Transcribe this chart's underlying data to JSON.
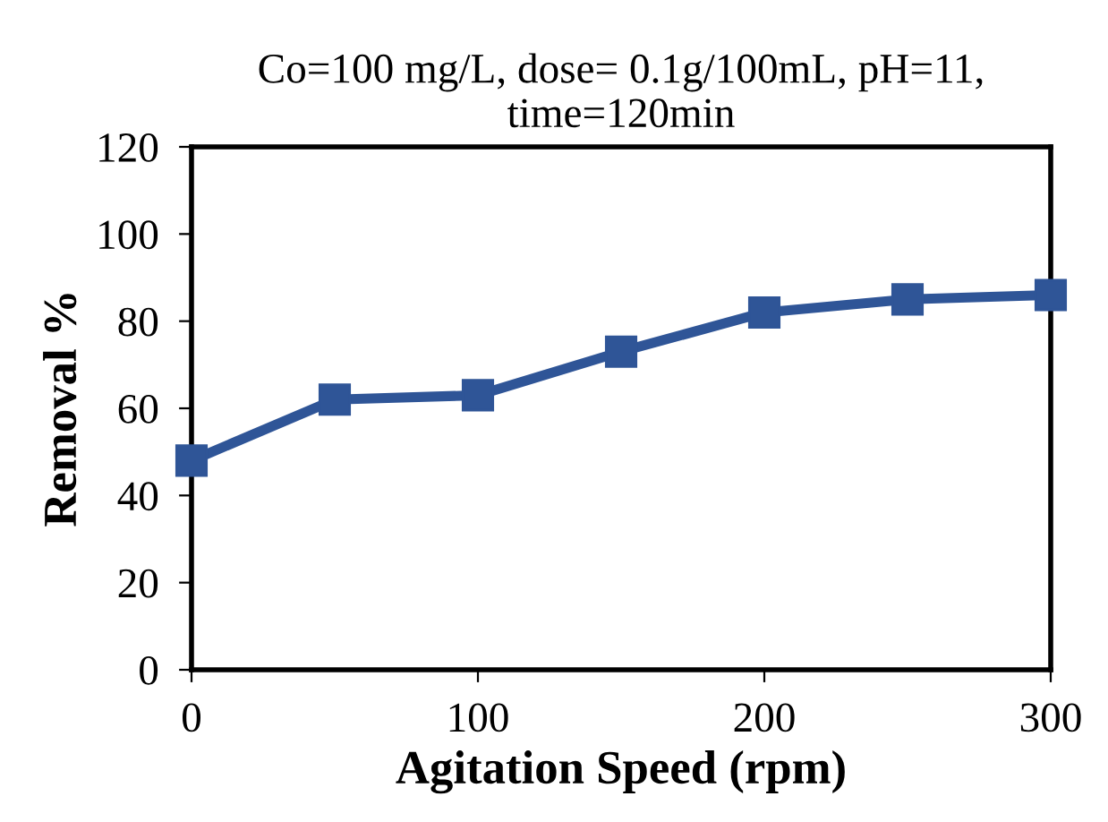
{
  "chart_data": {
    "type": "line",
    "title": "Co=100 mg/L, dose= 0.1g/100mL, pH=11,\ntime=120min",
    "xlabel": "Agitation Speed (rpm)",
    "ylabel": "Removal %",
    "x": [
      0,
      50,
      100,
      150,
      200,
      250,
      300
    ],
    "series": [
      {
        "color": "#2f5597",
        "values": [
          48,
          62,
          63,
          73,
          82,
          85,
          86
        ]
      }
    ],
    "xlim": [
      0,
      300
    ],
    "xticks": [
      0,
      100,
      200,
      300
    ],
    "ylim": [
      0,
      120
    ],
    "yticks": [
      0,
      20,
      40,
      60,
      80,
      100,
      120
    ],
    "marker": "square",
    "line_style": "solid",
    "grid": false
  }
}
